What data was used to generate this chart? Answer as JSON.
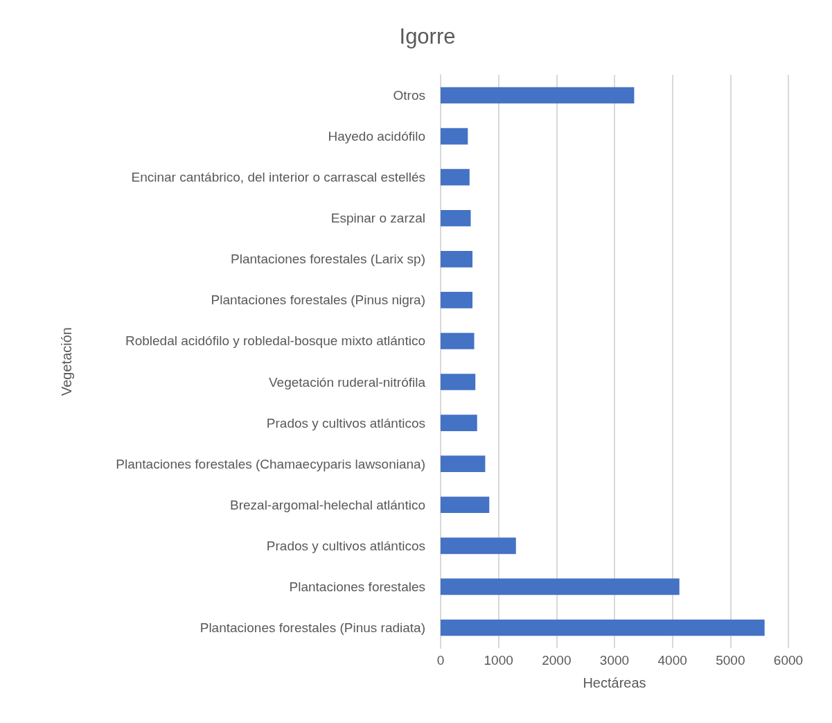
{
  "chart_data": {
    "type": "bar",
    "orientation": "horizontal",
    "title": "Igorre",
    "xlabel": "Hectáreas",
    "ylabel": "Vegetación",
    "categories": [
      "Otros",
      "Hayedo acidófilo",
      "Encinar cantábrico, del interior o carrascal estellés",
      "Espinar o zarzal",
      "Plantaciones forestales (Larix sp)",
      "Plantaciones forestales (Pinus nigra)",
      "Robledal acidófilo y robledal-bosque mixto atlántico",
      "Vegetación ruderal-nitrófila",
      "Prados y cultivos atlánticos",
      "Plantaciones forestales (Chamaecyparis lawsoniana)",
      "Brezal-argomal-helechal atlántico",
      "Prados y cultivos atlánticos",
      "Plantaciones forestales",
      "Plantaciones forestales (Pinus radiata)"
    ],
    "values": [
      3340,
      470,
      500,
      520,
      550,
      550,
      580,
      600,
      630,
      770,
      840,
      1300,
      4120,
      5590
    ],
    "color": "#4472c4",
    "xlim": [
      0,
      6000
    ],
    "xticks": [
      0,
      1000,
      2000,
      3000,
      4000,
      5000,
      6000
    ],
    "grid": "x"
  }
}
